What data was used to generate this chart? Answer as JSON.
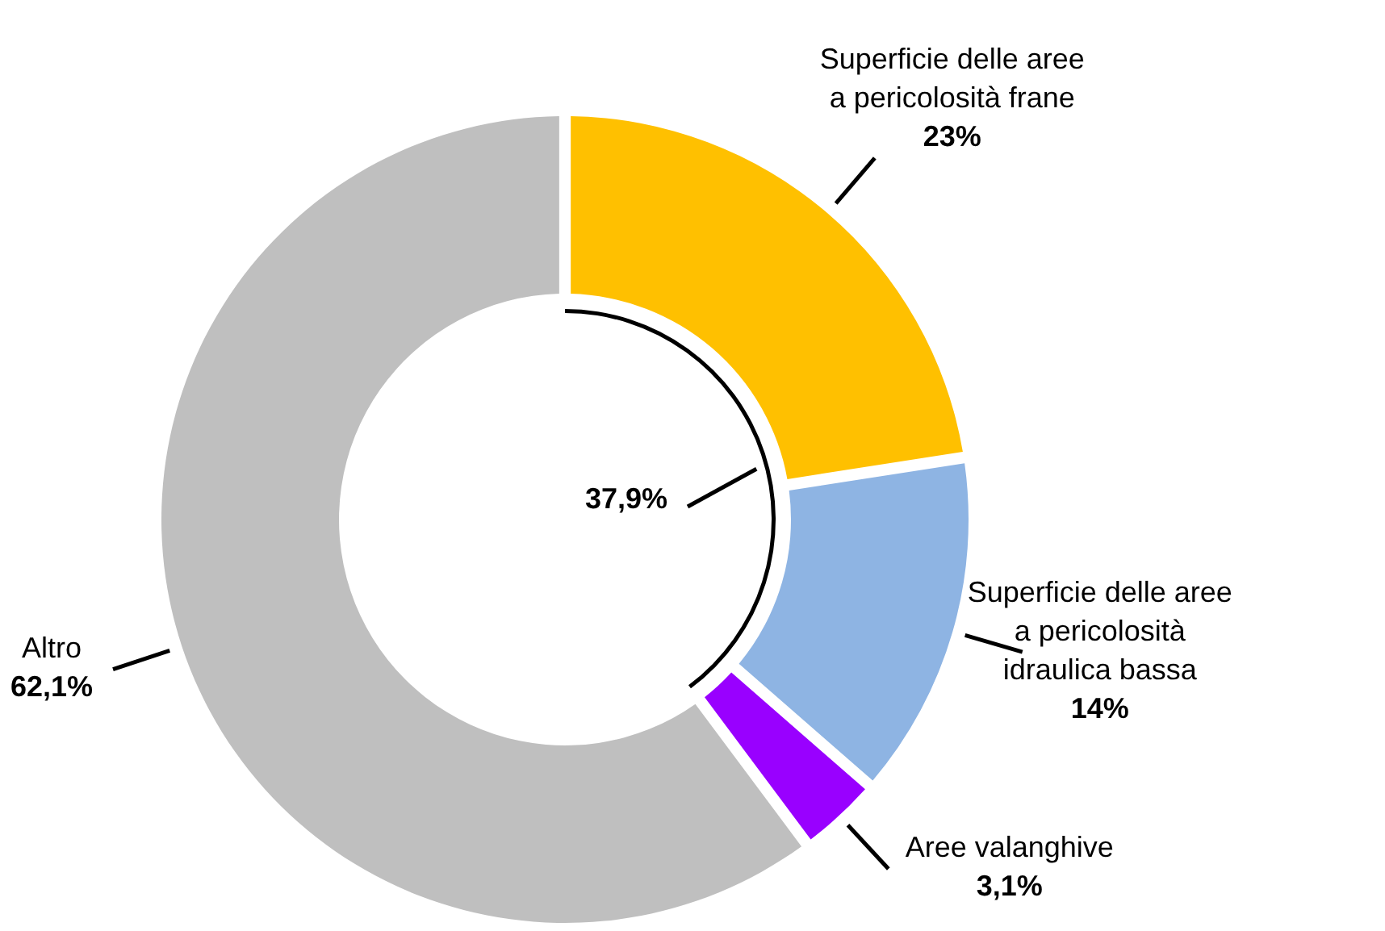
{
  "chart_data": {
    "type": "donut",
    "categories": [
      "Superficie delle aree a pericolosità frane",
      "Superficie delle aree a pericolosità idraulica bassa",
      "Aree valanghive",
      "Altro"
    ],
    "values": [
      23,
      14,
      3.1,
      62.1
    ],
    "value_labels": [
      "23%",
      "14%",
      "3,1%",
      "62,1%"
    ],
    "colors": [
      "#ffc000",
      "#8eb4e3",
      "#9900ff",
      "#bfbfbf"
    ],
    "annotations": [
      "37,9%"
    ]
  }
}
